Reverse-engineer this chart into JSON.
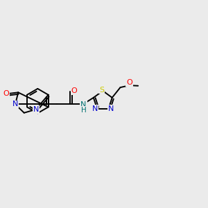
{
  "bg_color": "#ebebeb",
  "atom_colors": {
    "C": "#000000",
    "N": "#0000cc",
    "O": "#ff0000",
    "S": "#cccc00",
    "H": "#007070"
  },
  "bond_color": "#000000",
  "bond_width": 1.4,
  "figsize": [
    3.0,
    3.0
  ],
  "dpi": 100
}
